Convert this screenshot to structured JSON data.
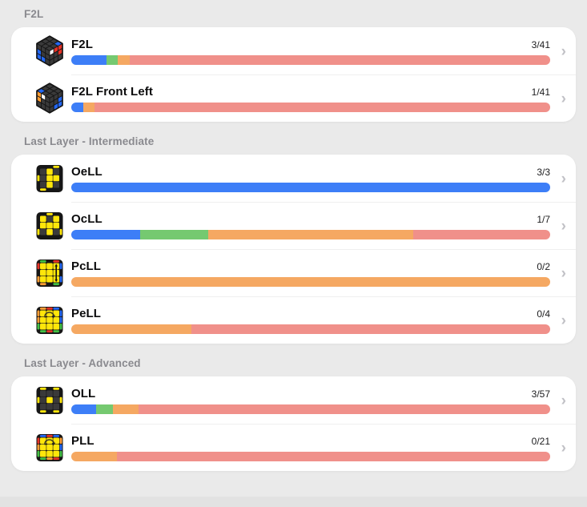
{
  "chevron": "›",
  "palette": {
    "bar": {
      "blue": "#3D7EF7",
      "green": "#75C970",
      "orange": "#F5A862",
      "salmon": "#F0908A"
    },
    "stickers": {
      "K": "#3A3A3A",
      "Y": "#FFE60A",
      "B": "#2367F2",
      "R": "#E63226",
      "O": "#FF9D33",
      "G": "#43C043",
      "W": "#FFFFFF"
    }
  },
  "sections": [
    {
      "header": "F2L",
      "rows": [
        {
          "title": "F2L",
          "count": "3/41",
          "bar": [
            {
              "c": "blue",
              "w": 7.32
            },
            {
              "c": "green",
              "w": 2.44
            },
            {
              "c": "orange",
              "w": 2.44
            },
            {
              "c": "salmon",
              "w": 87.8
            }
          ],
          "icon": {
            "kind": "iso",
            "top": [
              [
                "K",
                "K",
                "B"
              ],
              [
                "K",
                "K",
                "K"
              ],
              [
                "K",
                "K",
                "K"
              ]
            ],
            "left": [
              [
                "K",
                "K",
                "K"
              ],
              [
                "B",
                "K",
                "K"
              ],
              [
                "B",
                "B",
                "K"
              ]
            ],
            "right": [
              [
                "W",
                "R",
                "R"
              ],
              [
                "K",
                "K",
                "R"
              ],
              [
                "K",
                "K",
                "K"
              ]
            ]
          }
        },
        {
          "title": "F2L Front Left",
          "count": "1/41",
          "bar": [
            {
              "c": "blue",
              "w": 2.44
            },
            {
              "c": "orange",
              "w": 2.44
            },
            {
              "c": "salmon",
              "w": 95.12
            }
          ],
          "icon": {
            "kind": "iso",
            "top": [
              [
                "K",
                "K",
                "K"
              ],
              [
                "K",
                "K",
                "K"
              ],
              [
                "B",
                "K",
                "K"
              ]
            ],
            "left": [
              [
                "O",
                "W",
                "K"
              ],
              [
                "O",
                "K",
                "K"
              ],
              [
                "K",
                "K",
                "K"
              ]
            ],
            "right": [
              [
                "K",
                "K",
                "K"
              ],
              [
                "K",
                "K",
                "B"
              ],
              [
                "K",
                "B",
                "B"
              ]
            ]
          }
        }
      ]
    },
    {
      "header": "Last Layer - Intermediate",
      "rows": [
        {
          "title": "OeLL",
          "count": "3/3",
          "bar": [
            {
              "c": "blue",
              "w": 100
            }
          ],
          "icon": {
            "kind": "plan",
            "face": [
              [
                "K",
                "Y",
                "K"
              ],
              [
                "K",
                "Y",
                "Y"
              ],
              [
                "K",
                "Y",
                "K"
              ]
            ],
            "strips": {
              "top": [
                "_",
                "_",
                "Y"
              ],
              "right": [
                "_",
                "_",
                "_"
              ],
              "bottom": [
                "Y",
                "_",
                "_"
              ],
              "left": [
                "_",
                "Y",
                "_"
              ]
            },
            "arrow": "none"
          }
        },
        {
          "title": "OcLL",
          "count": "1/7",
          "bar": [
            {
              "c": "blue",
              "w": 14.3
            },
            {
              "c": "green",
              "w": 14.3
            },
            {
              "c": "orange",
              "w": 42.8
            },
            {
              "c": "salmon",
              "w": 28.6
            }
          ],
          "icon": {
            "kind": "plan",
            "face": [
              [
                "Y",
                "K",
                "Y"
              ],
              [
                "Y",
                "Y",
                "Y"
              ],
              [
                "K",
                "Y",
                "K"
              ]
            ],
            "strips": {
              "top": [
                "_",
                "Y",
                "_"
              ],
              "right": [
                "_",
                "_",
                "Y"
              ],
              "bottom": [
                "_",
                "_",
                "_"
              ],
              "left": [
                "_",
                "_",
                "Y"
              ]
            },
            "arrow": "none"
          }
        },
        {
          "title": "PcLL",
          "count": "0/2",
          "bar": [
            {
              "c": "orange",
              "w": 100
            }
          ],
          "icon": {
            "kind": "plan",
            "face": [
              [
                "Y",
                "Y",
                "Y"
              ],
              [
                "Y",
                "Y",
                "Y"
              ],
              [
                "Y",
                "Y",
                "Y"
              ]
            ],
            "strips": {
              "top": [
                "G",
                "_",
                "R"
              ],
              "right": [
                "B",
                "_",
                "B"
              ],
              "bottom": [
                "O",
                "_",
                "G"
              ],
              "left": [
                "R",
                "_",
                "O"
              ]
            },
            "arrow": "swap"
          }
        },
        {
          "title": "PeLL",
          "count": "0/4",
          "bar": [
            {
              "c": "orange",
              "w": 25
            },
            {
              "c": "salmon",
              "w": 75
            }
          ],
          "icon": {
            "kind": "plan",
            "face": [
              [
                "Y",
                "Y",
                "Y"
              ],
              [
                "Y",
                "Y",
                "Y"
              ],
              [
                "Y",
                "Y",
                "Y"
              ]
            ],
            "strips": {
              "top": [
                "O",
                "R",
                "B"
              ],
              "right": [
                "B",
                "B",
                "G"
              ],
              "bottom": [
                "G",
                "R",
                "G"
              ],
              "left": [
                "O",
                "O",
                "G"
              ]
            },
            "arrow": "cycle"
          }
        }
      ]
    },
    {
      "header": "Last Layer - Advanced",
      "rows": [
        {
          "title": "OLL",
          "count": "3/57",
          "bar": [
            {
              "c": "blue",
              "w": 5.26
            },
            {
              "c": "green",
              "w": 3.51
            },
            {
              "c": "orange",
              "w": 5.26
            },
            {
              "c": "salmon",
              "w": 85.97
            }
          ],
          "icon": {
            "kind": "plan",
            "face": [
              [
                "K",
                "K",
                "K"
              ],
              [
                "K",
                "Y",
                "K"
              ],
              [
                "K",
                "K",
                "K"
              ]
            ],
            "strips": {
              "top": [
                "Y",
                "_",
                "Y"
              ],
              "right": [
                "_",
                "Y",
                "_"
              ],
              "bottom": [
                "Y",
                "_",
                "Y"
              ],
              "left": [
                "_",
                "Y",
                "_"
              ]
            },
            "arrow": "none"
          }
        },
        {
          "title": "PLL",
          "count": "0/21",
          "bar": [
            {
              "c": "orange",
              "w": 9.52
            },
            {
              "c": "salmon",
              "w": 90.48
            }
          ],
          "icon": {
            "kind": "plan",
            "face": [
              [
                "Y",
                "Y",
                "Y"
              ],
              [
                "Y",
                "Y",
                "Y"
              ],
              [
                "Y",
                "Y",
                "Y"
              ]
            ],
            "strips": {
              "top": [
                "B",
                "R",
                "B"
              ],
              "right": [
                "O",
                "B",
                "G"
              ],
              "bottom": [
                "G",
                "O",
                "R"
              ],
              "left": [
                "R",
                "O",
                "G"
              ]
            },
            "arrow": "cycle"
          }
        }
      ]
    }
  ]
}
